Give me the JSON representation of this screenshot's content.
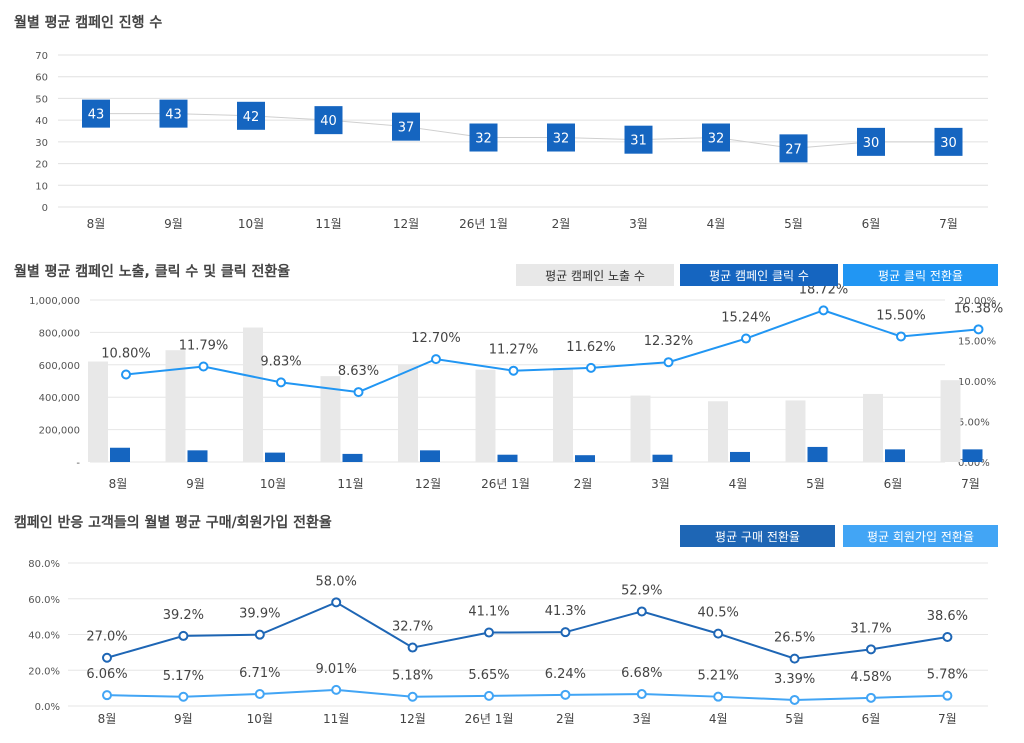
{
  "chart_data": [
    {
      "type": "line",
      "title": "월별 평균 캠페인 진행 수",
      "categories": [
        "8월",
        "9월",
        "10월",
        "11월",
        "12월",
        "26년 1월",
        "2월",
        "3월",
        "4월",
        "5월",
        "6월",
        "7월"
      ],
      "values": [
        43,
        43,
        42,
        40,
        37,
        32,
        32,
        31,
        32,
        27,
        30,
        30
      ],
      "ylim": [
        0,
        70
      ],
      "yticks": [
        "0",
        "10",
        "20",
        "30",
        "40",
        "50",
        "60",
        "70"
      ],
      "grid": true,
      "label_color": "#1565c0"
    },
    {
      "type": "bar",
      "title": "월별 평균 캠페인 노출, 클릭 수 및 클릭 전환율",
      "categories": [
        "8월",
        "9월",
        "10월",
        "11월",
        "12월",
        "26년 1월",
        "2월",
        "3월",
        "4월",
        "5월",
        "6월",
        "7월"
      ],
      "series": [
        {
          "name": "평균 캠페인 노출 수",
          "type": "bar",
          "color": "#e8e8e8",
          "text_color": "#333333",
          "values": [
            620000,
            690000,
            830000,
            530000,
            600000,
            570000,
            580000,
            410000,
            375000,
            380000,
            420000,
            505000
          ]
        },
        {
          "name": "평균 캠페인 클릭 수",
          "type": "bar",
          "color": "#1565c0",
          "text_color": "#ffffff",
          "values": [
            88000,
            72000,
            58000,
            50000,
            72000,
            45000,
            42000,
            45000,
            62000,
            93000,
            78000,
            78000
          ]
        },
        {
          "name": "평균 클릭 전환율",
          "type": "line",
          "axis": "right",
          "color": "#2196f3",
          "text_color": "#ffffff",
          "values": [
            10.8,
            11.79,
            9.83,
            8.63,
            12.7,
            11.27,
            11.62,
            12.32,
            15.24,
            18.72,
            15.5,
            16.38
          ],
          "labels": [
            "10.80%",
            "11.79%",
            "9.83%",
            "8.63%",
            "12.70%",
            "11.27%",
            "11.62%",
            "12.32%",
            "15.24%",
            "18.72%",
            "15.50%",
            "16.38%"
          ]
        }
      ],
      "ylim": [
        0,
        1000000
      ],
      "yticks": [
        "-",
        "200,000",
        "400,000",
        "600,000",
        "800,000",
        "1,000,000"
      ],
      "y2lim": [
        0,
        20
      ],
      "y2ticks": [
        "0.00%",
        "5.00%",
        "10.00%",
        "15.00%",
        "20.00%"
      ],
      "legend": "top-right",
      "grid": true
    },
    {
      "type": "line",
      "title": "캠페인 반응 고객들의 월별 평균 구매/회원가입 전환율",
      "categories": [
        "8월",
        "9월",
        "10월",
        "11월",
        "12월",
        "26년 1월",
        "2월",
        "3월",
        "4월",
        "5월",
        "6월",
        "7월"
      ],
      "series": [
        {
          "name": "평균 구매 전환율",
          "color": "#1e66b5",
          "values": [
            27.0,
            39.2,
            39.9,
            58.0,
            32.7,
            41.1,
            41.3,
            52.9,
            40.5,
            26.5,
            31.7,
            38.6
          ],
          "labels": [
            "27.0%",
            "39.2%",
            "39.9%",
            "58.0%",
            "32.7%",
            "41.1%",
            "41.3%",
            "52.9%",
            "40.5%",
            "26.5%",
            "31.7%",
            "38.6%"
          ]
        },
        {
          "name": "평균 회원가입 전환율",
          "color": "#42a5f5",
          "values": [
            6.06,
            5.17,
            6.71,
            9.01,
            5.18,
            5.65,
            6.24,
            6.68,
            5.21,
            3.39,
            4.58,
            5.78
          ],
          "labels": [
            "6.06%",
            "5.17%",
            "6.71%",
            "9.01%",
            "5.18%",
            "5.65%",
            "6.24%",
            "6.68%",
            "5.21%",
            "3.39%",
            "4.58%",
            "5.78%"
          ]
        }
      ],
      "ylim": [
        0,
        80
      ],
      "yticks": [
        "0.0%",
        "20.0%",
        "40.0%",
        "60.0%",
        "80.0%"
      ],
      "legend": "top-right",
      "grid": true
    }
  ]
}
